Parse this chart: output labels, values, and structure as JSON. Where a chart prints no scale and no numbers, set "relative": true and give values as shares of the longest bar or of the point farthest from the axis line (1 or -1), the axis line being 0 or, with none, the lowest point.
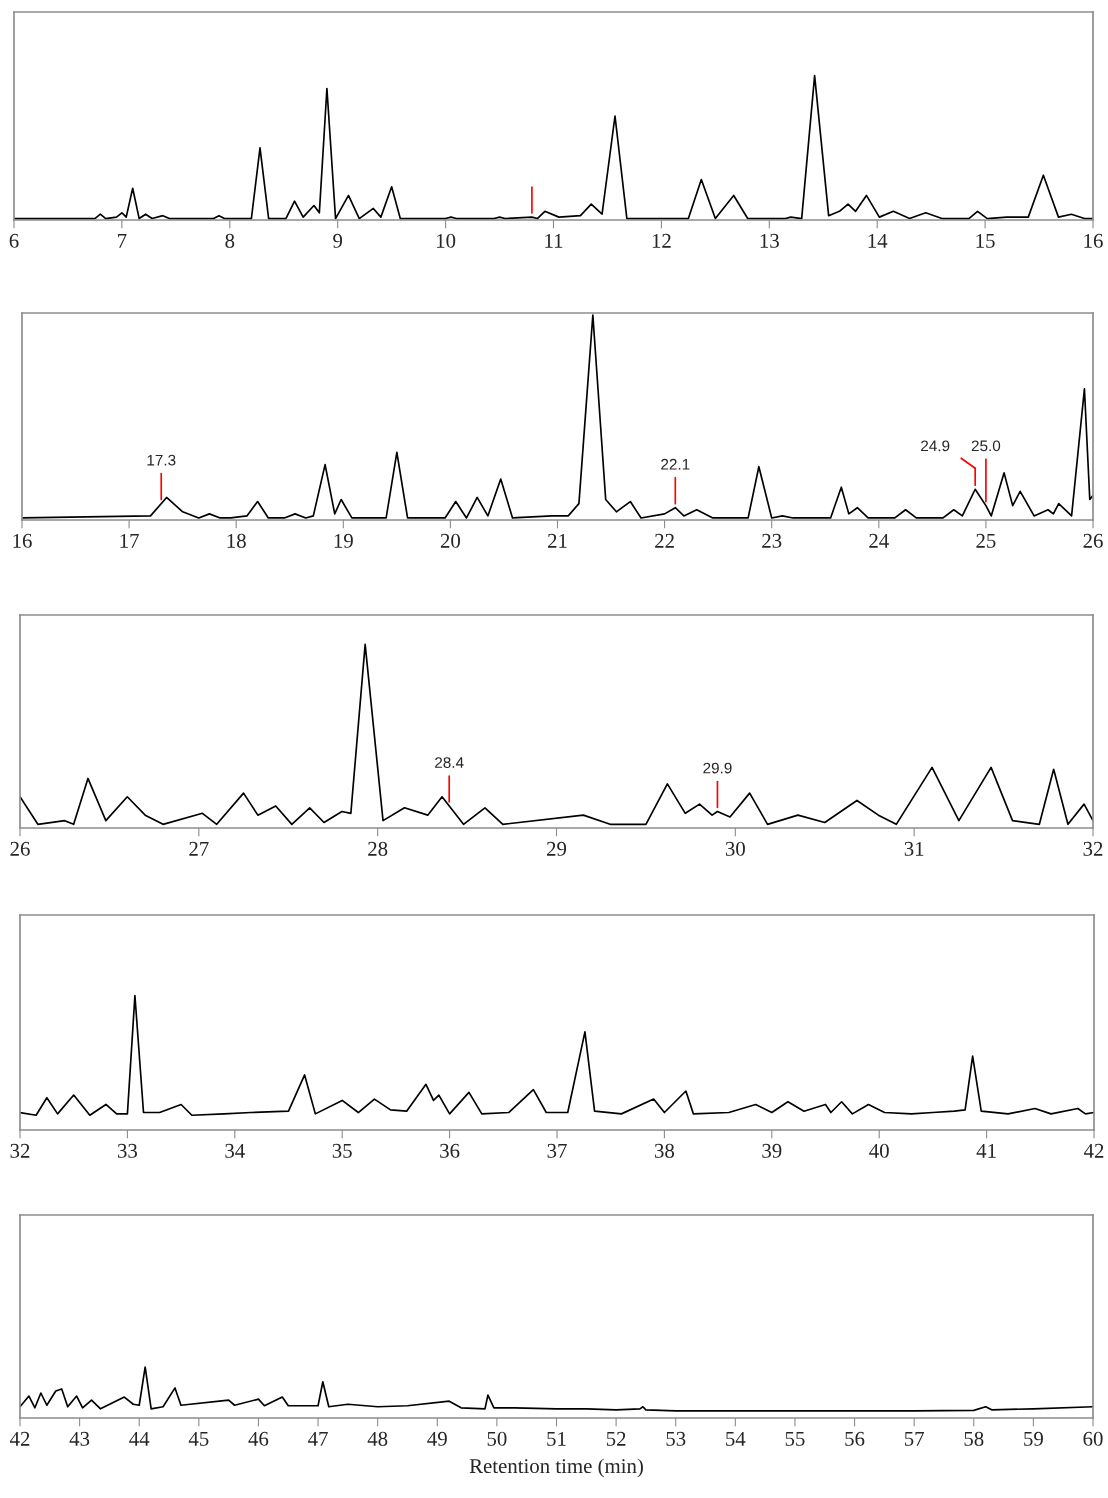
{
  "chart_data": [
    {
      "type": "line",
      "relative": true,
      "xlim": [
        6,
        16
      ],
      "xticks": [
        6,
        7,
        8,
        9,
        10,
        11,
        12,
        13,
        14,
        15,
        16
      ],
      "x": [
        6.0,
        6.75,
        6.8,
        6.85,
        6.95,
        7.0,
        7.04,
        7.1,
        7.16,
        7.22,
        7.28,
        7.38,
        7.44,
        7.85,
        7.9,
        7.95,
        8.2,
        8.28,
        8.36,
        8.52,
        8.6,
        8.68,
        8.78,
        8.83,
        8.9,
        8.98,
        9.1,
        9.2,
        9.33,
        9.4,
        9.5,
        9.58,
        10.0,
        10.05,
        10.1,
        10.45,
        10.5,
        10.55,
        10.8,
        10.85,
        10.92,
        11.05,
        11.25,
        11.35,
        11.45,
        11.57,
        11.68,
        12.25,
        12.37,
        12.5,
        12.67,
        12.8,
        13.15,
        13.2,
        13.3,
        13.42,
        13.55,
        13.65,
        13.73,
        13.8,
        13.9,
        14.02,
        14.15,
        14.3,
        14.45,
        14.6,
        14.85,
        14.93,
        15.02,
        15.2,
        15.4,
        15.54,
        15.68,
        15.8,
        15.92,
        16.0
      ],
      "series": [
        {
          "color": "#000000",
          "values": [
            0.01,
            0.01,
            0.04,
            0.01,
            0.02,
            0.05,
            0.02,
            0.22,
            0.01,
            0.04,
            0.01,
            0.03,
            0.01,
            0.01,
            0.03,
            0.01,
            0.01,
            0.5,
            0.01,
            0.01,
            0.13,
            0.02,
            0.1,
            0.05,
            0.91,
            0.01,
            0.17,
            0.01,
            0.08,
            0.02,
            0.23,
            0.01,
            0.01,
            0.02,
            0.01,
            0.01,
            0.02,
            0.01,
            0.02,
            0.01,
            0.06,
            0.02,
            0.03,
            0.11,
            0.04,
            0.72,
            0.01,
            0.01,
            0.28,
            0.01,
            0.17,
            0.01,
            0.01,
            0.02,
            0.01,
            1.0,
            0.03,
            0.06,
            0.11,
            0.06,
            0.17,
            0.02,
            0.06,
            0.01,
            0.05,
            0.01,
            0.01,
            0.06,
            0.01,
            0.02,
            0.02,
            0.31,
            0.02,
            0.04,
            0.01,
            0.01
          ]
        }
      ],
      "ref_lines": [
        {
          "axis": "x",
          "value": 10.8,
          "label": null,
          "color": "#ff0000"
        }
      ]
    },
    {
      "type": "line",
      "relative": true,
      "xlim": [
        16,
        26
      ],
      "xticks": [
        16,
        17,
        18,
        19,
        20,
        21,
        22,
        23,
        24,
        25,
        26
      ],
      "x": [
        16.0,
        17.2,
        17.35,
        17.5,
        17.65,
        17.75,
        17.85,
        17.95,
        18.1,
        18.2,
        18.3,
        18.45,
        18.55,
        18.65,
        18.72,
        18.83,
        18.92,
        18.98,
        19.08,
        19.4,
        19.5,
        19.6,
        19.75,
        19.95,
        20.05,
        20.15,
        20.25,
        20.35,
        20.47,
        20.58,
        20.95,
        21.1,
        21.2,
        21.33,
        21.45,
        21.55,
        21.68,
        21.78,
        22.0,
        22.1,
        22.18,
        22.3,
        22.45,
        22.78,
        22.88,
        23.0,
        23.1,
        23.2,
        23.55,
        23.65,
        23.72,
        23.8,
        23.9,
        24.15,
        24.25,
        24.35,
        24.6,
        24.7,
        24.78,
        24.9,
        25.0,
        25.05,
        25.17,
        25.25,
        25.32,
        25.45,
        25.58,
        25.63,
        25.68,
        25.8,
        25.92,
        25.97,
        26.0
      ],
      "series": [
        {
          "color": "#000000",
          "values": [
            0.01,
            0.02,
            0.11,
            0.04,
            0.01,
            0.03,
            0.01,
            0.01,
            0.02,
            0.09,
            0.01,
            0.01,
            0.03,
            0.01,
            0.02,
            0.27,
            0.03,
            0.1,
            0.01,
            0.01,
            0.33,
            0.01,
            0.01,
            0.01,
            0.09,
            0.01,
            0.11,
            0.02,
            0.2,
            0.01,
            0.02,
            0.02,
            0.08,
            1.0,
            0.1,
            0.04,
            0.09,
            0.01,
            0.03,
            0.06,
            0.02,
            0.05,
            0.01,
            0.01,
            0.26,
            0.01,
            0.02,
            0.01,
            0.01,
            0.16,
            0.03,
            0.06,
            0.01,
            0.01,
            0.05,
            0.01,
            0.01,
            0.05,
            0.02,
            0.15,
            0.07,
            0.02,
            0.23,
            0.07,
            0.14,
            0.02,
            0.05,
            0.03,
            0.08,
            0.02,
            0.64,
            0.1,
            0.12
          ]
        }
      ],
      "ref_lines": [
        {
          "axis": "x",
          "value": 17.3,
          "label": "17.3",
          "color": "#ff0000"
        },
        {
          "axis": "x",
          "value": 22.1,
          "label": "22.1",
          "color": "#ff0000"
        },
        {
          "axis": "x",
          "value": 24.9,
          "label": "24.9",
          "color": "#ff0000"
        },
        {
          "axis": "x",
          "value": 25.0,
          "label": "25.0",
          "color": "#ff0000"
        }
      ]
    },
    {
      "type": "line",
      "relative": true,
      "xlim": [
        26,
        32
      ],
      "xticks": [
        26,
        27,
        28,
        29,
        30,
        31,
        32
      ],
      "x": [
        26.0,
        26.1,
        26.25,
        26.3,
        26.38,
        26.48,
        26.6,
        26.7,
        26.8,
        27.02,
        27.1,
        27.25,
        27.33,
        27.43,
        27.52,
        27.62,
        27.7,
        27.8,
        27.85,
        27.93,
        28.03,
        28.15,
        28.28,
        28.36,
        28.48,
        28.6,
        28.7,
        29.15,
        29.3,
        29.5,
        29.62,
        29.72,
        29.8,
        29.87,
        29.9,
        29.97,
        30.08,
        30.18,
        30.35,
        30.5,
        30.68,
        30.8,
        30.9,
        31.1,
        31.25,
        31.43,
        31.55,
        31.7,
        31.78,
        31.86,
        31.95,
        32.0
      ],
      "series": [
        {
          "color": "#000000",
          "values": [
            0.17,
            0.02,
            0.04,
            0.02,
            0.27,
            0.04,
            0.17,
            0.07,
            0.02,
            0.08,
            0.02,
            0.19,
            0.07,
            0.12,
            0.02,
            0.11,
            0.03,
            0.09,
            0.08,
            1.0,
            0.04,
            0.11,
            0.07,
            0.17,
            0.02,
            0.11,
            0.02,
            0.07,
            0.02,
            0.02,
            0.24,
            0.08,
            0.13,
            0.07,
            0.09,
            0.06,
            0.19,
            0.02,
            0.07,
            0.03,
            0.15,
            0.07,
            0.02,
            0.33,
            0.04,
            0.33,
            0.04,
            0.02,
            0.32,
            0.02,
            0.13,
            0.04
          ]
        }
      ],
      "ref_lines": [
        {
          "axis": "x",
          "value": 28.4,
          "label": "28.4",
          "color": "#ff0000"
        },
        {
          "axis": "x",
          "value": 29.9,
          "label": "29.9",
          "color": "#ff0000"
        }
      ]
    },
    {
      "type": "line",
      "relative": true,
      "xlim": [
        32,
        42
      ],
      "xticks": [
        32,
        33,
        34,
        35,
        36,
        37,
        38,
        39,
        40,
        41,
        42
      ],
      "x": [
        32.0,
        32.15,
        32.25,
        32.35,
        32.5,
        32.65,
        32.8,
        32.9,
        33.0,
        33.07,
        33.15,
        33.3,
        33.5,
        33.6,
        33.9,
        34.15,
        34.5,
        34.65,
        34.75,
        35.0,
        35.15,
        35.3,
        35.45,
        35.6,
        35.78,
        35.85,
        35.9,
        36.0,
        36.18,
        36.3,
        36.55,
        36.78,
        36.9,
        37.1,
        37.26,
        37.35,
        37.6,
        37.9,
        38.0,
        38.2,
        38.27,
        38.6,
        38.85,
        39.0,
        39.15,
        39.3,
        39.5,
        39.55,
        39.65,
        39.75,
        39.9,
        40.05,
        40.3,
        40.5,
        40.7,
        40.8,
        40.87,
        40.95,
        41.2,
        41.45,
        41.6,
        41.85,
        41.92,
        42.0
      ],
      "series": [
        {
          "color": "#000000",
          "values": [
            0.13,
            0.11,
            0.24,
            0.12,
            0.26,
            0.11,
            0.19,
            0.12,
            0.12,
            1.0,
            0.13,
            0.13,
            0.19,
            0.11,
            0.12,
            0.13,
            0.14,
            0.41,
            0.12,
            0.22,
            0.13,
            0.23,
            0.15,
            0.14,
            0.34,
            0.22,
            0.26,
            0.12,
            0.28,
            0.12,
            0.13,
            0.3,
            0.13,
            0.13,
            0.73,
            0.14,
            0.12,
            0.23,
            0.13,
            0.29,
            0.12,
            0.13,
            0.19,
            0.13,
            0.21,
            0.14,
            0.19,
            0.13,
            0.21,
            0.12,
            0.19,
            0.13,
            0.12,
            0.13,
            0.14,
            0.15,
            0.55,
            0.14,
            0.12,
            0.16,
            0.12,
            0.16,
            0.12,
            0.13
          ]
        }
      ]
    },
    {
      "type": "line",
      "relative": true,
      "xlim": [
        42,
        60
      ],
      "xticks": [
        42,
        43,
        44,
        45,
        46,
        47,
        48,
        49,
        50,
        51,
        52,
        53,
        54,
        55,
        56,
        57,
        58,
        59,
        60
      ],
      "xlabel": "Retention time (min)",
      "x": [
        42.0,
        42.15,
        42.25,
        42.35,
        42.45,
        42.6,
        42.7,
        42.8,
        42.95,
        43.05,
        43.2,
        43.35,
        43.75,
        43.9,
        44.0,
        44.1,
        44.2,
        44.4,
        44.6,
        44.7,
        45.5,
        45.6,
        46.0,
        46.1,
        46.4,
        46.5,
        47.0,
        47.08,
        47.18,
        47.5,
        48.0,
        48.5,
        49.2,
        49.4,
        49.8,
        49.85,
        49.95,
        50.3,
        51.0,
        51.5,
        52.0,
        52.4,
        52.45,
        52.5,
        53.0,
        54.0,
        55.0,
        56.0,
        57.0,
        58.0,
        58.2,
        58.3,
        59.0,
        60.0
      ],
      "series": [
        {
          "color": "#000000",
          "values": [
            0.22,
            0.43,
            0.2,
            0.49,
            0.25,
            0.53,
            0.57,
            0.22,
            0.43,
            0.2,
            0.35,
            0.18,
            0.41,
            0.27,
            0.25,
            1.0,
            0.18,
            0.22,
            0.59,
            0.25,
            0.35,
            0.25,
            0.37,
            0.24,
            0.41,
            0.24,
            0.24,
            0.71,
            0.22,
            0.27,
            0.22,
            0.24,
            0.33,
            0.2,
            0.18,
            0.45,
            0.2,
            0.2,
            0.18,
            0.18,
            0.16,
            0.18,
            0.22,
            0.16,
            0.14,
            0.14,
            0.14,
            0.14,
            0.14,
            0.15,
            0.22,
            0.16,
            0.18,
            0.22
          ]
        }
      ]
    }
  ]
}
